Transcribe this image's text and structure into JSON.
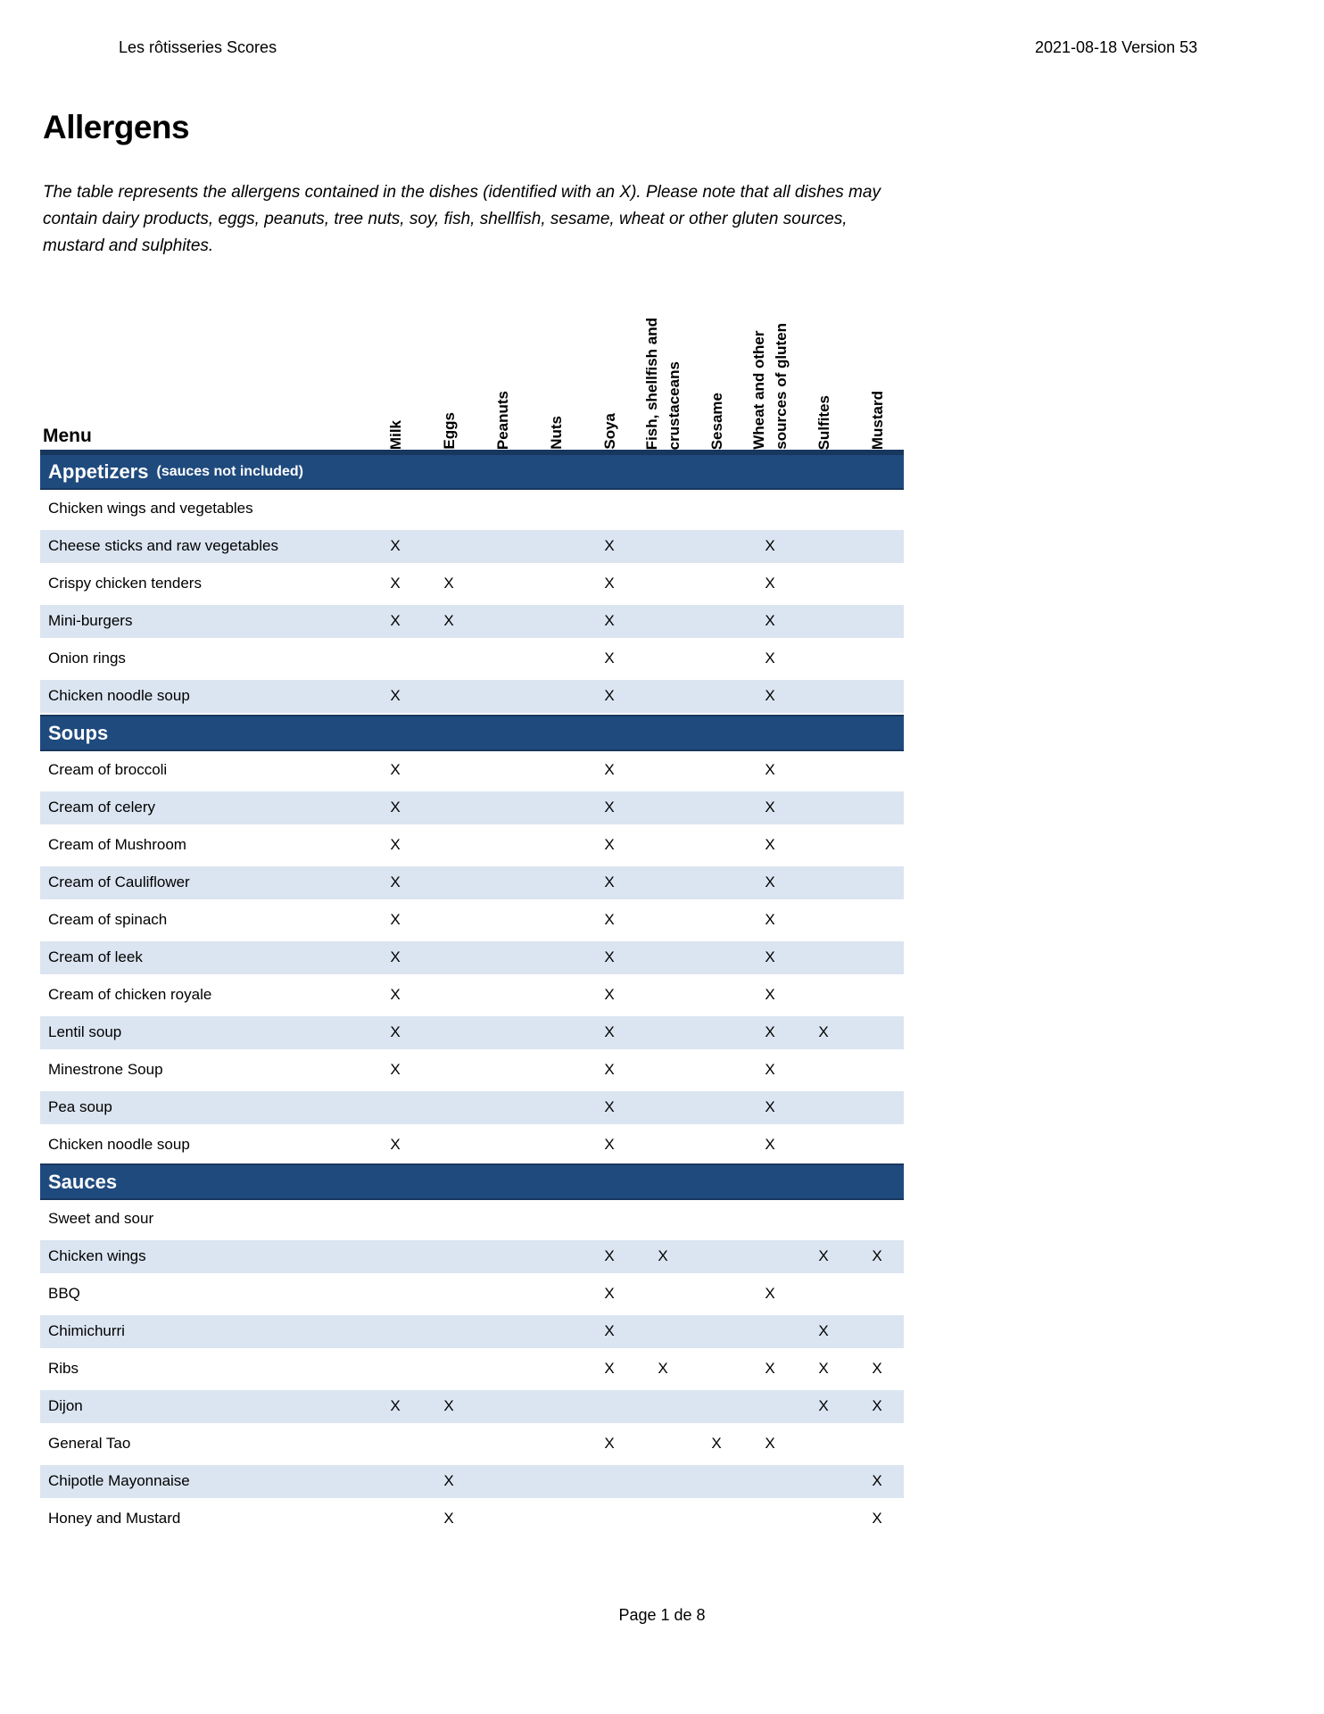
{
  "page": {
    "header_left": "Les rôtisseries Scores",
    "header_right": "2021-08-18 Version 53",
    "title": "Allergens",
    "intro_lines": [
      "The table represents the allergens contained in the dishes (identified with an X).  Please note that all dishes may",
      "contain dairy products, eggs, peanuts, tree nuts, soy, fish, shellfish, sesame, wheat or other gluten sources,",
      "mustard and sulphites."
    ],
    "footer": "Page 1 de 8"
  },
  "colors": {
    "section_bar": "#1F4A7D",
    "section_bar_edge": "#17375E",
    "row_shaded": "#DBE5F1"
  },
  "table": {
    "menu_label": "Menu",
    "mark_symbol": "X",
    "columns": [
      "Milk",
      "Eggs",
      "Peanuts",
      "Nuts",
      "Soya",
      "Fish, shellfish and\ncrustaceans",
      "Sesame",
      "Wheat and other\nsources of gluten",
      "Sulfites",
      "Mustard"
    ],
    "sections": [
      {
        "title": "Appetizers",
        "subtitle": "(sauces not included)",
        "rows": [
          {
            "name": "Chicken wings and vegetables",
            "marks": []
          },
          {
            "name": "Cheese sticks and raw vegetables",
            "marks": [
              0,
              4,
              7
            ]
          },
          {
            "name": "Crispy chicken tenders",
            "marks": [
              0,
              1,
              4,
              7
            ]
          },
          {
            "name": "Mini-burgers",
            "marks": [
              0,
              1,
              4,
              7
            ]
          },
          {
            "name": "Onion rings",
            "marks": [
              4,
              7
            ]
          },
          {
            "name": "Chicken noodle soup",
            "marks": [
              0,
              4,
              7
            ]
          }
        ]
      },
      {
        "title": "Soups",
        "subtitle": "",
        "rows": [
          {
            "name": "Cream of broccoli",
            "marks": [
              0,
              4,
              7
            ]
          },
          {
            "name": "Cream of celery",
            "marks": [
              0,
              4,
              7
            ]
          },
          {
            "name": "Cream of Mushroom",
            "marks": [
              0,
              4,
              7
            ]
          },
          {
            "name": "Cream of Cauliflower",
            "marks": [
              0,
              4,
              7
            ]
          },
          {
            "name": "Cream of spinach",
            "marks": [
              0,
              4,
              7
            ]
          },
          {
            "name": "Cream of leek",
            "marks": [
              0,
              4,
              7
            ]
          },
          {
            "name": "Cream of chicken royale",
            "marks": [
              0,
              4,
              7
            ]
          },
          {
            "name": "Lentil soup",
            "marks": [
              0,
              4,
              7,
              8
            ]
          },
          {
            "name": "Minestrone Soup",
            "marks": [
              0,
              4,
              7
            ]
          },
          {
            "name": "Pea soup",
            "marks": [
              4,
              7
            ]
          },
          {
            "name": "Chicken noodle soup",
            "marks": [
              0,
              4,
              7
            ]
          }
        ]
      },
      {
        "title": "Sauces",
        "subtitle": "",
        "rows": [
          {
            "name": "Sweet and sour",
            "marks": []
          },
          {
            "name": "Chicken wings",
            "marks": [
              4,
              5,
              8,
              9
            ]
          },
          {
            "name": "BBQ",
            "marks": [
              4,
              7
            ]
          },
          {
            "name": "Chimichurri",
            "marks": [
              4,
              8
            ]
          },
          {
            "name": "Ribs",
            "marks": [
              4,
              5,
              7,
              8,
              9
            ]
          },
          {
            "name": "Dijon",
            "marks": [
              0,
              1,
              8,
              9
            ]
          },
          {
            "name": "General Tao",
            "marks": [
              4,
              6,
              7
            ]
          },
          {
            "name": "Chipotle Mayonnaise",
            "marks": [
              1,
              9
            ]
          },
          {
            "name": "Honey and Mustard",
            "marks": [
              1,
              9
            ]
          }
        ]
      }
    ]
  }
}
